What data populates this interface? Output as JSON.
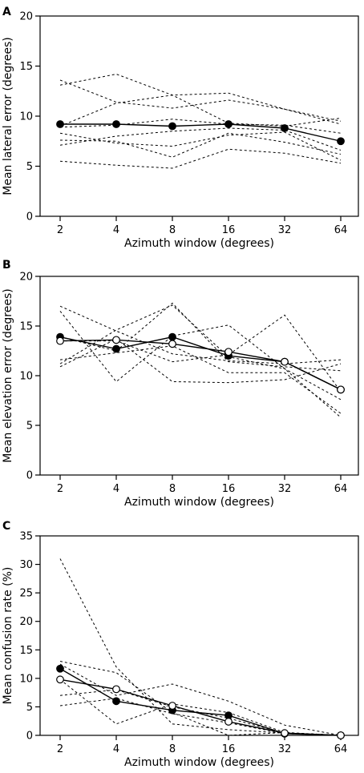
{
  "chart_data": [
    {
      "type": "line",
      "panel_label": "A",
      "xlabel": "Azimuth window (degrees)",
      "ylabel": "Mean lateral error (degrees)",
      "x": [
        2,
        4,
        8,
        16,
        32,
        64
      ],
      "xscale": "log2",
      "ylim": [
        0,
        20
      ],
      "yticks": [
        0,
        5,
        10,
        15,
        20
      ],
      "individual_series": [
        [
          13.1,
          14.2,
          12.1,
          9.3,
          9.0,
          9.8
        ],
        [
          13.6,
          11.4,
          10.8,
          11.6,
          10.7,
          9.2
        ],
        [
          9.0,
          11.3,
          12.1,
          12.3,
          10.7,
          9.5
        ],
        [
          8.9,
          9.1,
          9.7,
          9.2,
          9.1,
          8.3
        ],
        [
          7.1,
          8.0,
          8.5,
          8.8,
          8.6,
          6.6
        ],
        [
          7.6,
          7.5,
          5.9,
          8.3,
          7.4,
          6.2
        ],
        [
          8.3,
          7.3,
          7.0,
          8.1,
          8.4,
          5.6
        ],
        [
          5.5,
          5.1,
          4.8,
          6.7,
          6.3,
          5.3
        ]
      ],
      "series": [
        {
          "marker": "filled",
          "values": [
            9.2,
            9.2,
            9.0,
            9.2,
            8.8,
            7.5
          ]
        }
      ]
    },
    {
      "type": "line",
      "panel_label": "B",
      "xlabel": "Azimuth window (degrees)",
      "ylabel": "Mean elevation error (degrees)",
      "x": [
        2,
        4,
        8,
        16,
        32,
        64
      ],
      "xscale": "log2",
      "ylim": [
        0,
        20
      ],
      "yticks": [
        0,
        5,
        10,
        15,
        20
      ],
      "individual_series": [
        [
          17.0,
          14.5,
          12.2,
          11.5,
          11.2,
          11.6
        ],
        [
          16.5,
          9.4,
          14.0,
          15.1,
          10.7,
          5.8
        ],
        [
          13.9,
          12.5,
          17.3,
          11.4,
          10.9,
          10.5
        ],
        [
          11.2,
          14.6,
          17.1,
          11.9,
          10.7,
          7.6
        ],
        [
          13.5,
          13.5,
          11.4,
          12.1,
          16.1,
          8.4
        ],
        [
          11.6,
          12.3,
          13.0,
          10.3,
          10.3,
          6.2
        ],
        [
          10.9,
          13.7,
          9.4,
          9.3,
          9.6,
          11.2
        ]
      ],
      "series": [
        {
          "marker": "filled",
          "values": [
            13.9,
            12.7,
            13.9,
            12.0,
            11.4,
            8.6
          ]
        },
        {
          "marker": "open",
          "values": [
            13.5,
            13.6,
            13.2,
            12.4,
            11.4,
            8.6
          ]
        }
      ]
    },
    {
      "type": "line",
      "panel_label": "C",
      "xlabel": "Azimuth window (degrees)",
      "ylabel": "Mean confusion rate (%)",
      "x": [
        2,
        4,
        8,
        16,
        32,
        64
      ],
      "xscale": "log2",
      "ylim": [
        0,
        35
      ],
      "yticks": [
        0,
        5,
        10,
        15,
        20,
        25,
        30,
        35
      ],
      "individual_series": [
        [
          31.0,
          12.0,
          2.0,
          1.0,
          0.4,
          0.0
        ],
        [
          13.0,
          11.0,
          4.0,
          0.0,
          0.5,
          0.0
        ],
        [
          12.5,
          7.0,
          9.0,
          6.0,
          1.8,
          0.0
        ],
        [
          9.8,
          2.0,
          5.5,
          4.0,
          0.5,
          0.0
        ],
        [
          7.0,
          8.0,
          5.0,
          3.0,
          0.4,
          0.0
        ],
        [
          5.2,
          6.5,
          3.8,
          2.2,
          0.3,
          0.0
        ]
      ],
      "series": [
        {
          "marker": "filled",
          "values": [
            11.7,
            6.0,
            4.4,
            3.5,
            0.3,
            0.0
          ]
        },
        {
          "marker": "open",
          "values": [
            9.8,
            8.1,
            5.2,
            2.4,
            0.4,
            0.0
          ]
        }
      ]
    }
  ]
}
